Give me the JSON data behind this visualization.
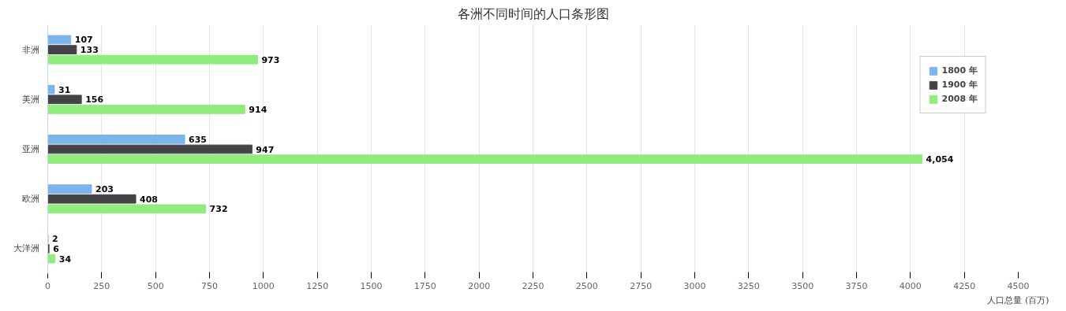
{
  "chart_data": {
    "type": "bar",
    "orientation": "horizontal",
    "title": "各洲不同时间的人口条形图",
    "xlabel": "人口总量 (百万)",
    "categories": [
      "非洲",
      "美洲",
      "亚洲",
      "欧洲",
      "大洋洲"
    ],
    "series": [
      {
        "name": "1800 年",
        "color": "#7cb5ec",
        "values": [
          107,
          31,
          635,
          203,
          2
        ],
        "value_labels": [
          "107",
          "31",
          "635",
          "203",
          "2"
        ]
      },
      {
        "name": "1900 年",
        "color": "#434348",
        "values": [
          133,
          156,
          947,
          408,
          6
        ],
        "value_labels": [
          "133",
          "156",
          "947",
          "408",
          "6"
        ]
      },
      {
        "name": "2008 年",
        "color": "#90ed7d",
        "values": [
          973,
          914,
          4054,
          732,
          34
        ],
        "value_labels": [
          "973",
          "914",
          "4,054",
          "732",
          "34"
        ]
      }
    ],
    "xlim": [
      0,
      4500
    ],
    "xticks": [
      0,
      250,
      500,
      750,
      1000,
      1250,
      1500,
      1750,
      2000,
      2250,
      2500,
      2750,
      3000,
      3250,
      3500,
      3750,
      4000,
      4250,
      4500
    ],
    "grid": "x",
    "legend": "top right"
  }
}
